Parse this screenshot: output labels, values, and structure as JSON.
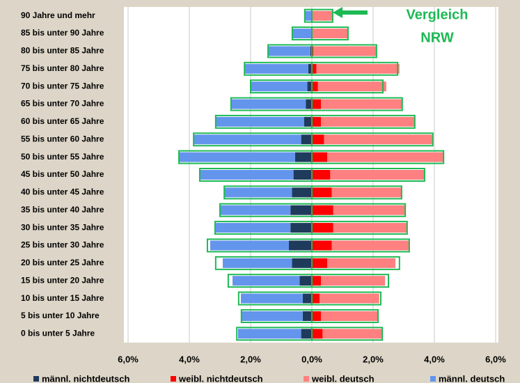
{
  "chart_data": {
    "type": "pyramid",
    "categories": [
      "90 Jahre und mehr",
      "85 bis unter 90 Jahre",
      "80 bis unter 85 Jahre",
      "75 bis unter 80 Jahre",
      "70 bis unter 75 Jahre",
      "65 bis unter 70 Jahre",
      "60 bis unter 65 Jahre",
      "55 bis unter 60 Jahre",
      "50 bis unter 55 Jahre",
      "45 bis unter 50 Jahre",
      "40 bis unter 45 Jahre",
      "35 bis unter 40 Jahre",
      "30 bis unter 35 Jahre",
      "25 bis unter 30 Jahre",
      "20 bis unter 25 Jahre",
      "15 bis unter 20 Jahre",
      "10 bis unter 15 Jahre",
      "5 bis unter 10 Jahre",
      "0 bis unter 5 Jahre"
    ],
    "series": [
      {
        "name": "männl. nichtdeutsch",
        "color": "#1f3b5c",
        "values": [
          -0.01,
          -0.02,
          -0.05,
          -0.12,
          -0.15,
          -0.2,
          -0.25,
          -0.35,
          -0.55,
          -0.6,
          -0.65,
          -0.7,
          -0.7,
          -0.75,
          -0.65,
          -0.4,
          -0.3,
          -0.3,
          -0.35
        ]
      },
      {
        "name": "weibl. nichtdeutsch",
        "color": "#ff0000",
        "values": [
          0.01,
          0.02,
          0.05,
          0.15,
          0.2,
          0.3,
          0.3,
          0.4,
          0.5,
          0.6,
          0.65,
          0.7,
          0.7,
          0.65,
          0.5,
          0.3,
          0.25,
          0.3,
          0.35
        ]
      },
      {
        "name": "weibl. deutsch",
        "color": "#ff8080",
        "values": [
          0.67,
          1.16,
          2.06,
          2.71,
          2.23,
          2.65,
          3.06,
          3.55,
          3.8,
          3.08,
          2.28,
          2.35,
          2.41,
          2.53,
          2.23,
          2.09,
          1.95,
          1.86,
          1.95
        ]
      },
      {
        "name": "männl. deutsch",
        "color": "#6495ed",
        "values": [
          -0.22,
          -0.62,
          -1.38,
          -2.06,
          -1.85,
          -2.44,
          -2.89,
          -3.51,
          -3.79,
          -3.06,
          -2.21,
          -2.3,
          -2.44,
          -2.57,
          -2.26,
          -2.19,
          -2.02,
          -2.0,
          -2.06
        ]
      }
    ],
    "comparison": {
      "color": "#1db954",
      "lines": [
        "Vergleich",
        "NRW"
      ],
      "male": [
        -0.23,
        -0.64,
        -1.43,
        -2.2,
        -2.0,
        -2.64,
        -3.14,
        -3.86,
        -4.34,
        -3.66,
        -2.86,
        -3.0,
        -3.16,
        -3.41,
        -3.14,
        -2.73,
        -2.39,
        -2.3,
        -2.45
      ],
      "female": [
        0.68,
        1.18,
        2.11,
        2.8,
        2.32,
        2.95,
        3.36,
        3.95,
        4.3,
        3.68,
        2.93,
        3.05,
        3.11,
        3.18,
        2.86,
        2.5,
        2.25,
        2.16,
        2.3
      ]
    },
    "xlim": [
      -6,
      6
    ],
    "xticks": [
      {
        "value": -6,
        "label": "6,0%"
      },
      {
        "value": -4,
        "label": "4,0%"
      },
      {
        "value": -2,
        "label": "2,0%"
      },
      {
        "value": 0,
        "label": "0,0%"
      },
      {
        "value": 2,
        "label": "2,0%"
      },
      {
        "value": 4,
        "label": "4,0%"
      },
      {
        "value": 6,
        "label": "6,0%"
      }
    ],
    "grid": true
  }
}
